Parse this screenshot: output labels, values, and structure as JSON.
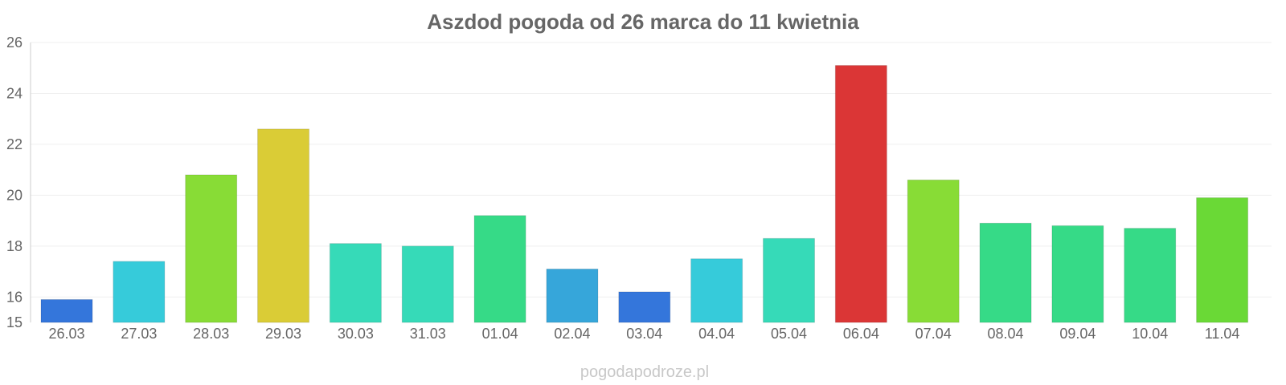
{
  "chart_data": {
    "type": "bar",
    "title": "Aszdod pogoda od 26 marca do 11 kwietnia",
    "xlabel": "",
    "ylabel": "",
    "ylim": [
      15,
      26
    ],
    "yticks": [
      15,
      16,
      18,
      20,
      22,
      24,
      26
    ],
    "grid": true,
    "categories": [
      "26.03",
      "27.03",
      "28.03",
      "29.03",
      "30.03",
      "31.03",
      "01.04",
      "02.04",
      "03.04",
      "04.04",
      "05.04",
      "06.04",
      "07.04",
      "08.04",
      "09.04",
      "10.04",
      "11.04"
    ],
    "values": [
      15.9,
      17.4,
      20.8,
      22.6,
      18.1,
      18.0,
      19.2,
      17.1,
      16.2,
      17.5,
      18.3,
      25.1,
      20.6,
      18.9,
      18.8,
      18.7,
      19.9
    ],
    "colors": [
      "#3476db",
      "#36cbda",
      "#88dc36",
      "#dacc36",
      "#36dab8",
      "#36dab8",
      "#36da87",
      "#36a6da",
      "#3476db",
      "#36cbda",
      "#36dab8",
      "#db3636",
      "#88dc36",
      "#36da87",
      "#36da87",
      "#36da87",
      "#6ad936"
    ]
  },
  "watermark": "pogodapodroze.pl"
}
